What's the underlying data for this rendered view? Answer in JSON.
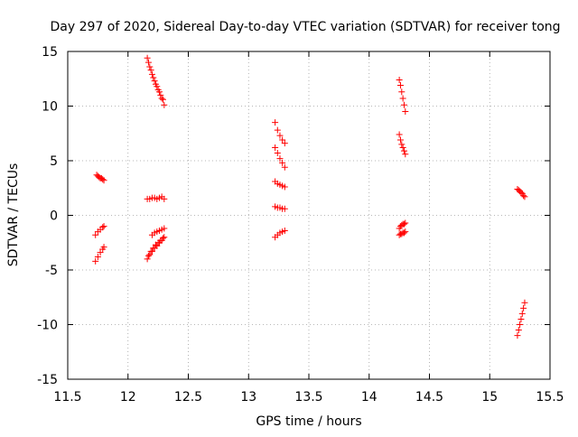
{
  "chart_data": {
    "type": "scatter",
    "title": "Day 297 of 2020, Sidereal Day-to-day VTEC variation (SDTVAR) for receiver tong",
    "xlabel": "GPS time / hours",
    "ylabel": "SDTVAR / TECUs",
    "xlim": [
      11.5,
      15.5
    ],
    "ylim": [
      -15,
      15
    ],
    "xticks": [
      11.5,
      12,
      12.5,
      13,
      13.5,
      14,
      14.5,
      15,
      15.5
    ],
    "xtick_labels": [
      "11.5",
      "12",
      "12.5",
      "13",
      "13.5",
      "14",
      "14.5",
      "15",
      "15.5"
    ],
    "yticks": [
      -15,
      -10,
      -5,
      0,
      5,
      10,
      15
    ],
    "ytick_labels": [
      "-15",
      "-10",
      "-5",
      "0",
      "5",
      "10",
      "15"
    ],
    "grid": true,
    "marker": "+",
    "color": "#ff0000",
    "series": [
      {
        "name": "a1",
        "x": [
          11.74,
          11.75,
          11.76,
          11.77,
          11.78,
          11.79,
          11.8
        ],
        "y": [
          3.7,
          3.6,
          3.5,
          3.4,
          3.4,
          3.3,
          3.2
        ]
      },
      {
        "name": "a2",
        "x": [
          11.73,
          11.75,
          11.77,
          11.79,
          11.8
        ],
        "y": [
          -1.8,
          -1.5,
          -1.3,
          -1.1,
          -1.0
        ]
      },
      {
        "name": "a3",
        "x": [
          11.73,
          11.75,
          11.77,
          11.79,
          11.8
        ],
        "y": [
          -4.2,
          -3.8,
          -3.4,
          -3.1,
          -2.9
        ]
      },
      {
        "name": "b1",
        "x": [
          12.16,
          12.18,
          12.2,
          12.22,
          12.24,
          12.26,
          12.28,
          12.3
        ],
        "y": [
          14.4,
          13.6,
          12.9,
          12.3,
          11.8,
          11.3,
          10.7,
          10.1
        ]
      },
      {
        "name": "b2",
        "x": [
          12.17,
          12.19,
          12.21,
          12.23,
          12.25,
          12.27,
          12.29
        ],
        "y": [
          14.0,
          13.3,
          12.6,
          12.0,
          11.5,
          11.0,
          10.6
        ]
      },
      {
        "name": "b3",
        "x": [
          12.16,
          12.18,
          12.2,
          12.22,
          12.24,
          12.26,
          12.28,
          12.3
        ],
        "y": [
          1.5,
          1.5,
          1.6,
          1.6,
          1.5,
          1.6,
          1.7,
          1.5
        ]
      },
      {
        "name": "b4",
        "x": [
          12.2,
          12.22,
          12.24,
          12.26,
          12.28,
          12.3
        ],
        "y": [
          -1.8,
          -1.6,
          -1.5,
          -1.4,
          -1.3,
          -1.2
        ]
      },
      {
        "name": "b5",
        "x": [
          12.16,
          12.18,
          12.2,
          12.22,
          12.24,
          12.26,
          12.28,
          12.3
        ],
        "y": [
          -4.0,
          -3.6,
          -3.3,
          -3.0,
          -2.8,
          -2.5,
          -2.3,
          -2.0
        ]
      },
      {
        "name": "b6",
        "x": [
          12.17,
          12.19,
          12.21,
          12.23,
          12.25,
          12.27,
          12.29
        ],
        "y": [
          -3.7,
          -3.3,
          -3.0,
          -2.7,
          -2.5,
          -2.3,
          -2.1
        ]
      },
      {
        "name": "c1",
        "x": [
          13.22,
          13.24,
          13.26,
          13.28,
          13.3
        ],
        "y": [
          8.5,
          7.8,
          7.3,
          6.9,
          6.6
        ]
      },
      {
        "name": "c2",
        "x": [
          13.22,
          13.24,
          13.26,
          13.28,
          13.3
        ],
        "y": [
          6.2,
          5.7,
          5.2,
          4.8,
          4.4
        ]
      },
      {
        "name": "c3",
        "x": [
          13.22,
          13.24,
          13.26,
          13.28,
          13.3
        ],
        "y": [
          3.1,
          2.9,
          2.8,
          2.7,
          2.6
        ]
      },
      {
        "name": "c4",
        "x": [
          13.22,
          13.24,
          13.26,
          13.28,
          13.3
        ],
        "y": [
          0.8,
          0.7,
          0.7,
          0.6,
          0.6
        ]
      },
      {
        "name": "c5",
        "x": [
          13.22,
          13.24,
          13.26,
          13.28,
          13.3
        ],
        "y": [
          -2.0,
          -1.8,
          -1.6,
          -1.5,
          -1.4
        ]
      },
      {
        "name": "d1",
        "x": [
          14.25,
          14.26,
          14.27,
          14.28,
          14.29,
          14.3
        ],
        "y": [
          12.4,
          11.9,
          11.3,
          10.7,
          10.1,
          9.5
        ]
      },
      {
        "name": "d2",
        "x": [
          14.25,
          14.26,
          14.27,
          14.28,
          14.29,
          14.3
        ],
        "y": [
          7.4,
          6.9,
          6.5,
          6.2,
          5.9,
          5.6
        ]
      },
      {
        "name": "d3",
        "x": [
          14.25,
          14.26,
          14.27,
          14.28,
          14.29,
          14.3
        ],
        "y": [
          -1.2,
          -1.0,
          -0.9,
          -0.8,
          -0.8,
          -0.7
        ]
      },
      {
        "name": "d4",
        "x": [
          14.25,
          14.26,
          14.27,
          14.28,
          14.29,
          14.3
        ],
        "y": [
          -1.8,
          -1.7,
          -1.7,
          -1.6,
          -1.6,
          -1.5
        ]
      },
      {
        "name": "e1",
        "x": [
          15.23,
          15.24,
          15.25,
          15.26,
          15.27,
          15.28,
          15.29
        ],
        "y": [
          2.4,
          2.3,
          2.2,
          2.1,
          2.0,
          1.8,
          1.7
        ]
      },
      {
        "name": "e2",
        "x": [
          15.23,
          15.24,
          15.25,
          15.26,
          15.27,
          15.28,
          15.29
        ],
        "y": [
          -11.0,
          -10.5,
          -10.0,
          -9.5,
          -9.0,
          -8.5,
          -8.0
        ]
      }
    ]
  }
}
